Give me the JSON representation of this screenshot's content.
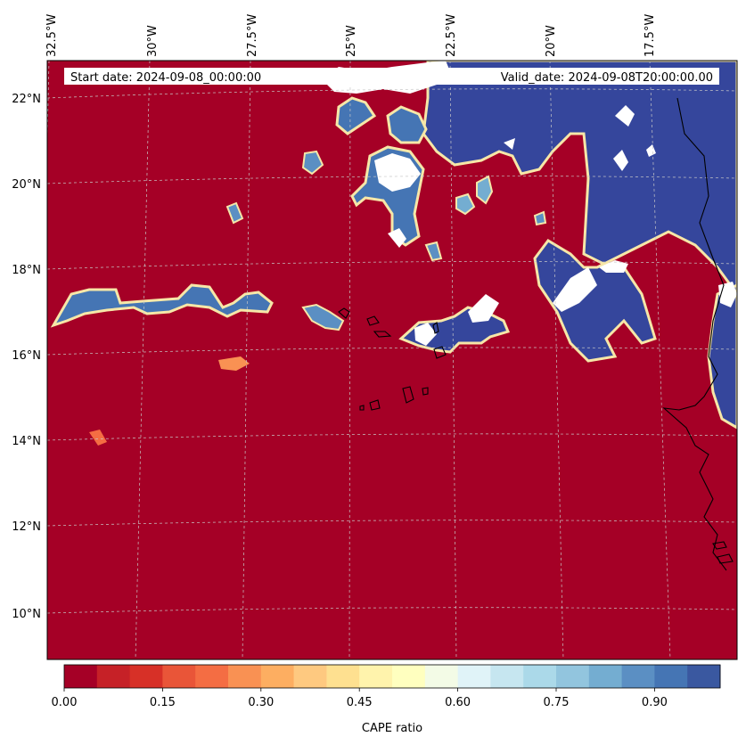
{
  "header": {
    "start_label": "Start date: 2024-09-08_00:00:00",
    "valid_label": "Valid_date: 2024-09-08T20:00:00.00"
  },
  "map": {
    "extent": {
      "lon_west": -33.0,
      "lon_east": -15.5,
      "lat_south": 9.0,
      "lat_north": 22.8
    },
    "lon_ticks": [
      "32.5°W",
      "30°W",
      "27.5°W",
      "25°W",
      "22.5°W",
      "20°W",
      "17.5°W"
    ],
    "lat_ticks": [
      "22°N",
      "20°N",
      "18°N",
      "16°N",
      "14°N",
      "12°N",
      "10°N"
    ]
  },
  "colorbar": {
    "label": "CAPE ratio",
    "tick_labels": [
      "0.00",
      "0.15",
      "0.30",
      "0.45",
      "0.60",
      "0.75",
      "0.90"
    ],
    "colors": [
      "#a50026",
      "#c62127",
      "#d73027",
      "#e95538",
      "#f46d43",
      "#f99153",
      "#fdae61",
      "#fec980",
      "#fee090",
      "#fff3ac",
      "#ffffbf",
      "#f3fbe6",
      "#e0f3f8",
      "#c6e6f0",
      "#abd9e9",
      "#92c5de",
      "#74add1",
      "#5b8fc3",
      "#4575b4",
      "#3a58a0"
    ]
  },
  "colors": {
    "low": "#a50026",
    "high": "#35469c",
    "missing": "#ffffff",
    "coast": "#000000"
  }
}
